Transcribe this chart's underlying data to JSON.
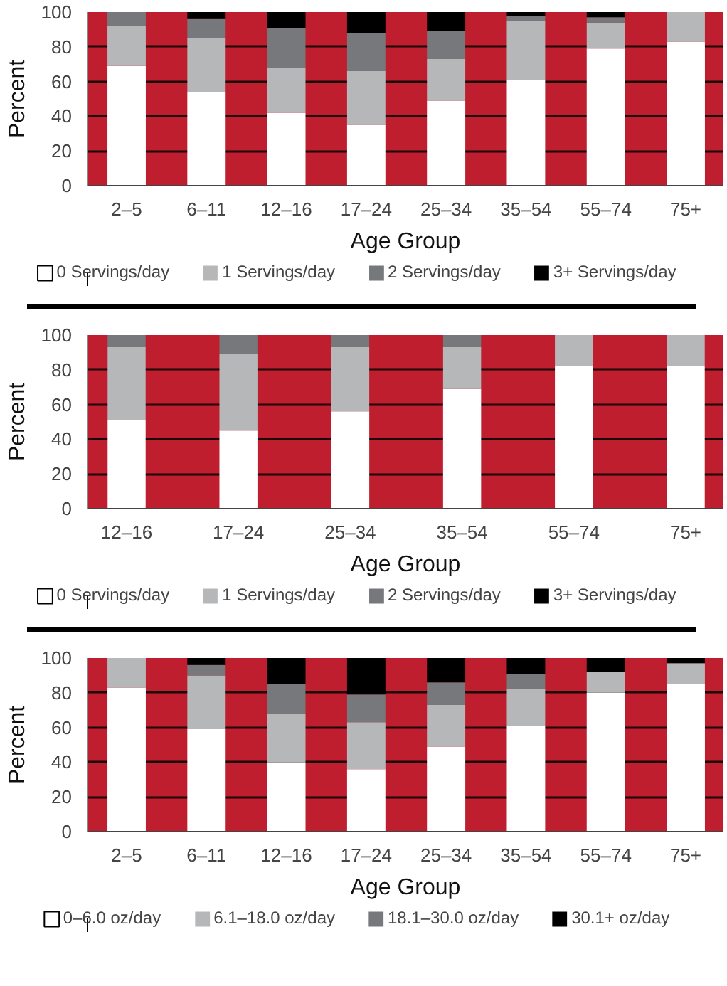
{
  "chart_data": [
    {
      "type": "bar",
      "stacked": true,
      "xlabel": "Age Group",
      "ylabel": "Percent",
      "ylim": [
        0,
        100
      ],
      "yticks": [
        0,
        20,
        40,
        60,
        80,
        100
      ],
      "grid": "y",
      "legend": "bottom",
      "categories": [
        "2–5",
        "6–11",
        "12–16",
        "17–24",
        "25–34",
        "35–54",
        "55–74",
        "75+"
      ],
      "series": [
        {
          "name": "0 Servings/day",
          "color": "#ffffff",
          "values": [
            69,
            54,
            42,
            35,
            49,
            61,
            79,
            83
          ]
        },
        {
          "name": "1 Servings/day",
          "color": "#b6b7b9",
          "values": [
            23,
            31,
            26,
            31,
            24,
            34,
            15,
            17
          ]
        },
        {
          "name": "2 Servings/day",
          "color": "#77787b",
          "values": [
            8,
            11,
            23,
            22,
            16,
            3,
            3,
            0
          ]
        },
        {
          "name": "3+ Servings/day",
          "color": "#000000",
          "values": [
            0,
            4,
            9,
            12,
            11,
            2,
            3,
            0
          ]
        }
      ]
    },
    {
      "type": "bar",
      "stacked": true,
      "xlabel": "Age Group",
      "ylabel": "Percent",
      "ylim": [
        0,
        100
      ],
      "yticks": [
        0,
        20,
        40,
        60,
        80,
        100
      ],
      "grid": "y",
      "legend": "bottom",
      "categories": [
        "12–16",
        "17–24",
        "25–34",
        "35–54",
        "55–74",
        "75+"
      ],
      "series": [
        {
          "name": "0 Servings/day",
          "color": "#ffffff",
          "values": [
            51,
            45,
            56,
            69,
            82,
            82
          ]
        },
        {
          "name": "1 Servings/day",
          "color": "#b6b7b9",
          "values": [
            42,
            44,
            37,
            24,
            18,
            18
          ]
        },
        {
          "name": "2 Servings/day",
          "color": "#77787b",
          "values": [
            7,
            11,
            7,
            7,
            0,
            0
          ]
        },
        {
          "name": "3+ Servings/day",
          "color": "#000000",
          "values": [
            0,
            0,
            0,
            0,
            0,
            0
          ]
        }
      ]
    },
    {
      "type": "bar",
      "stacked": true,
      "xlabel": "Age Group",
      "ylabel": "Percent",
      "ylim": [
        0,
        100
      ],
      "yticks": [
        0,
        20,
        40,
        60,
        80,
        100
      ],
      "grid": "y",
      "legend": "bottom",
      "categories": [
        "2–5",
        "6–11",
        "12–16",
        "17–24",
        "25–34",
        "35–54",
        "55–74",
        "75+"
      ],
      "series": [
        {
          "name": "0–6.0 oz/day",
          "color": "#ffffff",
          "values": [
            83,
            59,
            40,
            36,
            49,
            61,
            80,
            85
          ]
        },
        {
          "name": "6.1–18.0 oz/day",
          "color": "#b6b7b9",
          "values": [
            17,
            31,
            28,
            27,
            24,
            21,
            12,
            12
          ]
        },
        {
          "name": "18.1–30.0 oz/day",
          "color": "#77787b",
          "values": [
            0,
            6,
            17,
            16,
            13,
            9,
            0,
            0
          ]
        },
        {
          "name": "30.1+ oz/day",
          "color": "#000000",
          "values": [
            0,
            4,
            15,
            21,
            14,
            9,
            8,
            3
          ]
        }
      ]
    }
  ]
}
